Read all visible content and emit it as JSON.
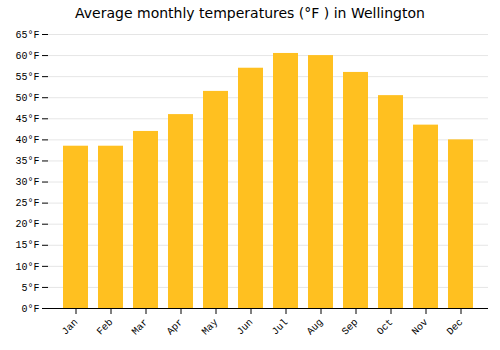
{
  "chart_data": {
    "type": "bar",
    "title": "Average monthly temperatures (°F ) in Wellington",
    "categories": [
      "Jan",
      "Feb",
      "Mar",
      "Apr",
      "May",
      "Jun",
      "Jul",
      "Aug",
      "Sep",
      "Oct",
      "Nov",
      "Dec"
    ],
    "values": [
      38.5,
      38.5,
      42.0,
      46.0,
      51.5,
      57.0,
      60.5,
      60.0,
      56.0,
      50.5,
      43.5,
      40.0
    ],
    "color": "#FFC020",
    "ylim": [
      0,
      65
    ],
    "yticks": [
      {
        "value": 0,
        "label": "0°F"
      },
      {
        "value": 5,
        "label": "5°F"
      },
      {
        "value": 10,
        "label": "10°F"
      },
      {
        "value": 15,
        "label": "15°F"
      },
      {
        "value": 20,
        "label": "20°F"
      },
      {
        "value": 25,
        "label": "25°F"
      },
      {
        "value": 30,
        "label": "30°F"
      },
      {
        "value": 35,
        "label": "35°F"
      },
      {
        "value": 40,
        "label": "40°F"
      },
      {
        "value": 45,
        "label": "45°F"
      },
      {
        "value": 50,
        "label": "50°F"
      },
      {
        "value": 55,
        "label": "55°F"
      },
      {
        "value": 60,
        "label": "60°F"
      },
      {
        "value": 65,
        "label": "65°F"
      }
    ],
    "grid": true
  }
}
